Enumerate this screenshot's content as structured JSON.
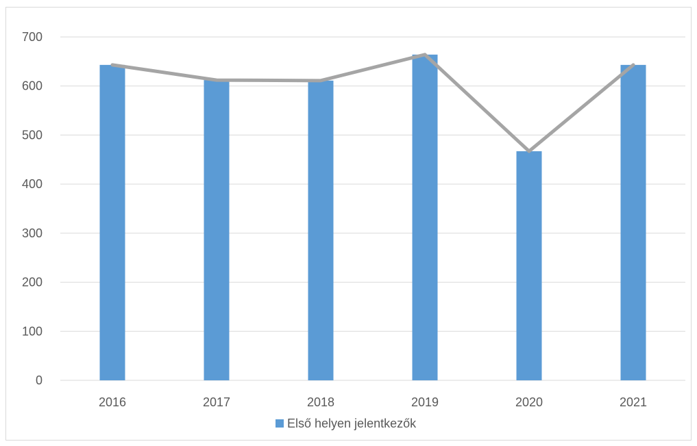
{
  "chart_data": {
    "type": "bar",
    "categories": [
      "2016",
      "2017",
      "2018",
      "2019",
      "2020",
      "2021"
    ],
    "series": [
      {
        "name": "Első helyen jelentkezők",
        "type": "bar",
        "color": "#5b9bd5",
        "values": [
          643,
          612,
          611,
          664,
          467,
          643
        ]
      },
      {
        "type": "line",
        "color": "#a5a5a5",
        "values": [
          643,
          612,
          611,
          664,
          467,
          643
        ]
      }
    ],
    "yticks": [
      0,
      100,
      200,
      300,
      400,
      500,
      600,
      700
    ],
    "ylim": [
      0,
      700
    ],
    "grid": true,
    "legend": "bottom",
    "title": "",
    "xlabel": "",
    "ylabel": ""
  }
}
